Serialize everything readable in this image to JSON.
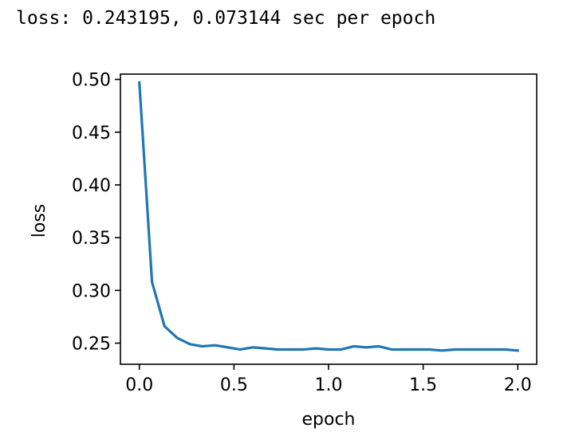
{
  "output_text": "loss: 0.243195, 0.073144 sec per epoch",
  "chart_data": {
    "type": "line",
    "title": "",
    "xlabel": "epoch",
    "ylabel": "loss",
    "xlim": [
      -0.1,
      2.1
    ],
    "ylim": [
      0.23,
      0.505
    ],
    "xticks": [
      0.0,
      0.5,
      1.0,
      1.5,
      2.0
    ],
    "xtick_labels": [
      "0.0",
      "0.5",
      "1.0",
      "1.5",
      "2.0"
    ],
    "yticks": [
      0.25,
      0.3,
      0.35,
      0.4,
      0.45,
      0.5
    ],
    "ytick_labels": [
      "0.25",
      "0.30",
      "0.35",
      "0.40",
      "0.45",
      "0.50"
    ],
    "grid": false,
    "series": [
      {
        "color": "#1f77b4",
        "x": [
          0.0,
          0.067,
          0.133,
          0.2,
          0.267,
          0.333,
          0.4,
          0.467,
          0.533,
          0.6,
          0.667,
          0.733,
          0.8,
          0.867,
          0.933,
          1.0,
          1.067,
          1.133,
          1.2,
          1.267,
          1.333,
          1.4,
          1.467,
          1.533,
          1.6,
          1.667,
          1.733,
          1.8,
          1.867,
          1.933,
          2.0
        ],
        "y": [
          0.497,
          0.308,
          0.266,
          0.255,
          0.249,
          0.247,
          0.248,
          0.246,
          0.244,
          0.246,
          0.245,
          0.244,
          0.244,
          0.244,
          0.245,
          0.244,
          0.244,
          0.247,
          0.246,
          0.247,
          0.244,
          0.244,
          0.244,
          0.244,
          0.243,
          0.244,
          0.244,
          0.244,
          0.244,
          0.244,
          0.243
        ]
      }
    ]
  }
}
